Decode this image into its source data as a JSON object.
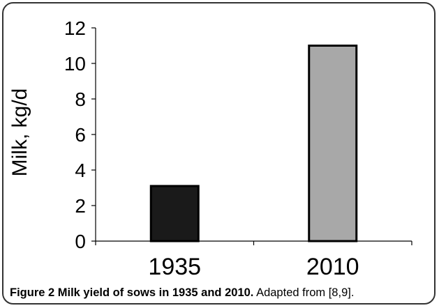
{
  "chart_data": {
    "type": "bar",
    "categories": [
      "1935",
      "2010"
    ],
    "values": [
      3.1,
      11
    ],
    "ylabel": "Milk, kg/d",
    "xlabel": "",
    "ylim": [
      0,
      12
    ],
    "yticks": [
      0,
      2,
      4,
      6,
      8,
      10,
      12
    ],
    "bar_colors": [
      "#1a1a1a",
      "#a8a8a8"
    ],
    "bar_edge_color": "#000000",
    "grid": false
  },
  "caption": {
    "figure_label": "Figure 2 Milk yield of sows in 1935 and 2010.",
    "text": "Adapted from [8,9]."
  }
}
